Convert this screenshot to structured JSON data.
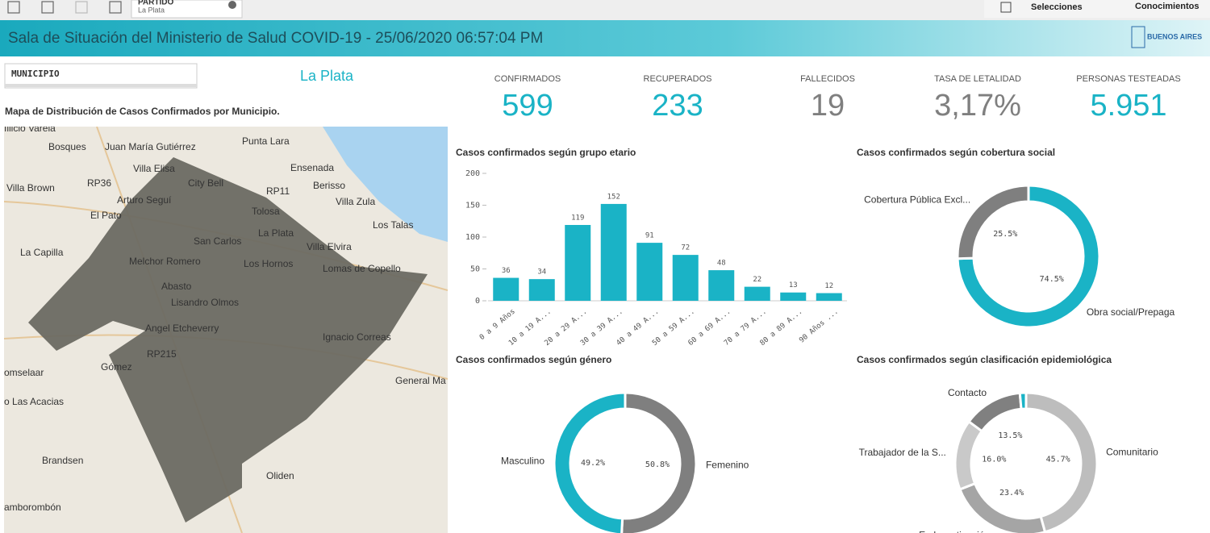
{
  "toolbar": {
    "filter_field": "PARTIDO",
    "filter_value": "La Plata",
    "selections": "Selecciones",
    "insights": "Conocimientos"
  },
  "header": {
    "title": "Sala de Situación del Ministerio de Salud COVID-19 - 25/06/2020 06:57:04 PM",
    "logo": "BUENOS AIRES"
  },
  "filter": {
    "label": "MUNICIPIO",
    "value": "La Plata"
  },
  "kpis": [
    {
      "label": "CONFIRMADOS",
      "value": "599",
      "color": "#1ab3c6"
    },
    {
      "label": "RECUPERADOS",
      "value": "233",
      "color": "#1ab3c6"
    },
    {
      "label": "FALLECIDOS",
      "value": "19",
      "color": "#7f7f7f"
    },
    {
      "label": "TASA DE LETALIDAD",
      "value": "3,17%",
      "color": "#7f7f7f"
    },
    {
      "label": "PERSONAS TESTEADAS",
      "value": "5.951",
      "color": "#1ab3c6"
    }
  ],
  "map": {
    "title": "Mapa de Distribución de Casos Confirmados por Municipio.",
    "places": [
      "Illicio Varela",
      "Bosques",
      "Juan María Gutiérrez",
      "Punta Lara",
      "Villa Elisa",
      "Ensenada",
      "City Bell",
      "Berisso",
      "Villa Brown",
      "Villa Zula",
      "Arturo Seguí",
      "Tolosa",
      "El Pato",
      "Los Talas",
      "La Plata",
      "San Carlos",
      "Villa Elvira",
      "La Capilla",
      "Melchor Romero",
      "Los Hornos",
      "Lomas de Copello",
      "Abasto",
      "Lisandro Olmos",
      "Angel Etcheverry",
      "Ignacio Correas",
      "Gómez",
      "omselaar",
      "General Ma",
      "o Las Acacias",
      "Brandsen",
      "Oliden",
      "amborombón",
      "RP36",
      "RP11",
      "RP215"
    ]
  },
  "chart_data": [
    {
      "type": "bar",
      "title": "Casos confirmados según grupo etario",
      "categories": [
        "0 a 9 Años",
        "10 a 19 A...",
        "20 a 29 A...",
        "30 a 39 A...",
        "40 a 49 A...",
        "50 a 59 A...",
        "60 a 69 A...",
        "70 a 79 A...",
        "80 a 89 A...",
        "90 Años ..."
      ],
      "values": [
        36,
        34,
        119,
        152,
        91,
        72,
        48,
        22,
        13,
        12
      ],
      "color": "#1ab3c6",
      "ylim": [
        0,
        200
      ],
      "yticks": [
        0,
        50,
        100,
        150,
        200
      ]
    },
    {
      "type": "donut",
      "title": "Casos confirmados según cobertura social",
      "categories": [
        "Obra social/Prepaga",
        "Cobertura Pública Excl..."
      ],
      "values": [
        74.5,
        25.5
      ],
      "value_labels": [
        "74.5%",
        "25.5%"
      ],
      "colors": [
        "#1ab3c6",
        "#7f7f7f"
      ]
    },
    {
      "type": "donut",
      "title": "Casos confirmados según género",
      "categories": [
        "Femenino",
        "Masculino"
      ],
      "values": [
        50.8,
        49.2
      ],
      "value_labels": [
        "50.8%",
        "49.2%"
      ],
      "colors": [
        "#7f7f7f",
        "#1ab3c6"
      ]
    },
    {
      "type": "donut",
      "title": "Casos confirmados según clasificación epidemiológica",
      "categories": [
        "Comunitario",
        "En Investigación",
        "Trabajador de la S...",
        "Contacto",
        null
      ],
      "values": [
        45.7,
        23.4,
        16.0,
        13.5,
        1.4
      ],
      "value_labels": [
        "45.7%",
        "23.4%",
        "16.0%",
        "13.5%",
        null
      ],
      "colors": [
        "#bdbdbd",
        "#a5a5a5",
        "#c9c9c9",
        "#808080",
        "#1ab3c6"
      ]
    }
  ]
}
